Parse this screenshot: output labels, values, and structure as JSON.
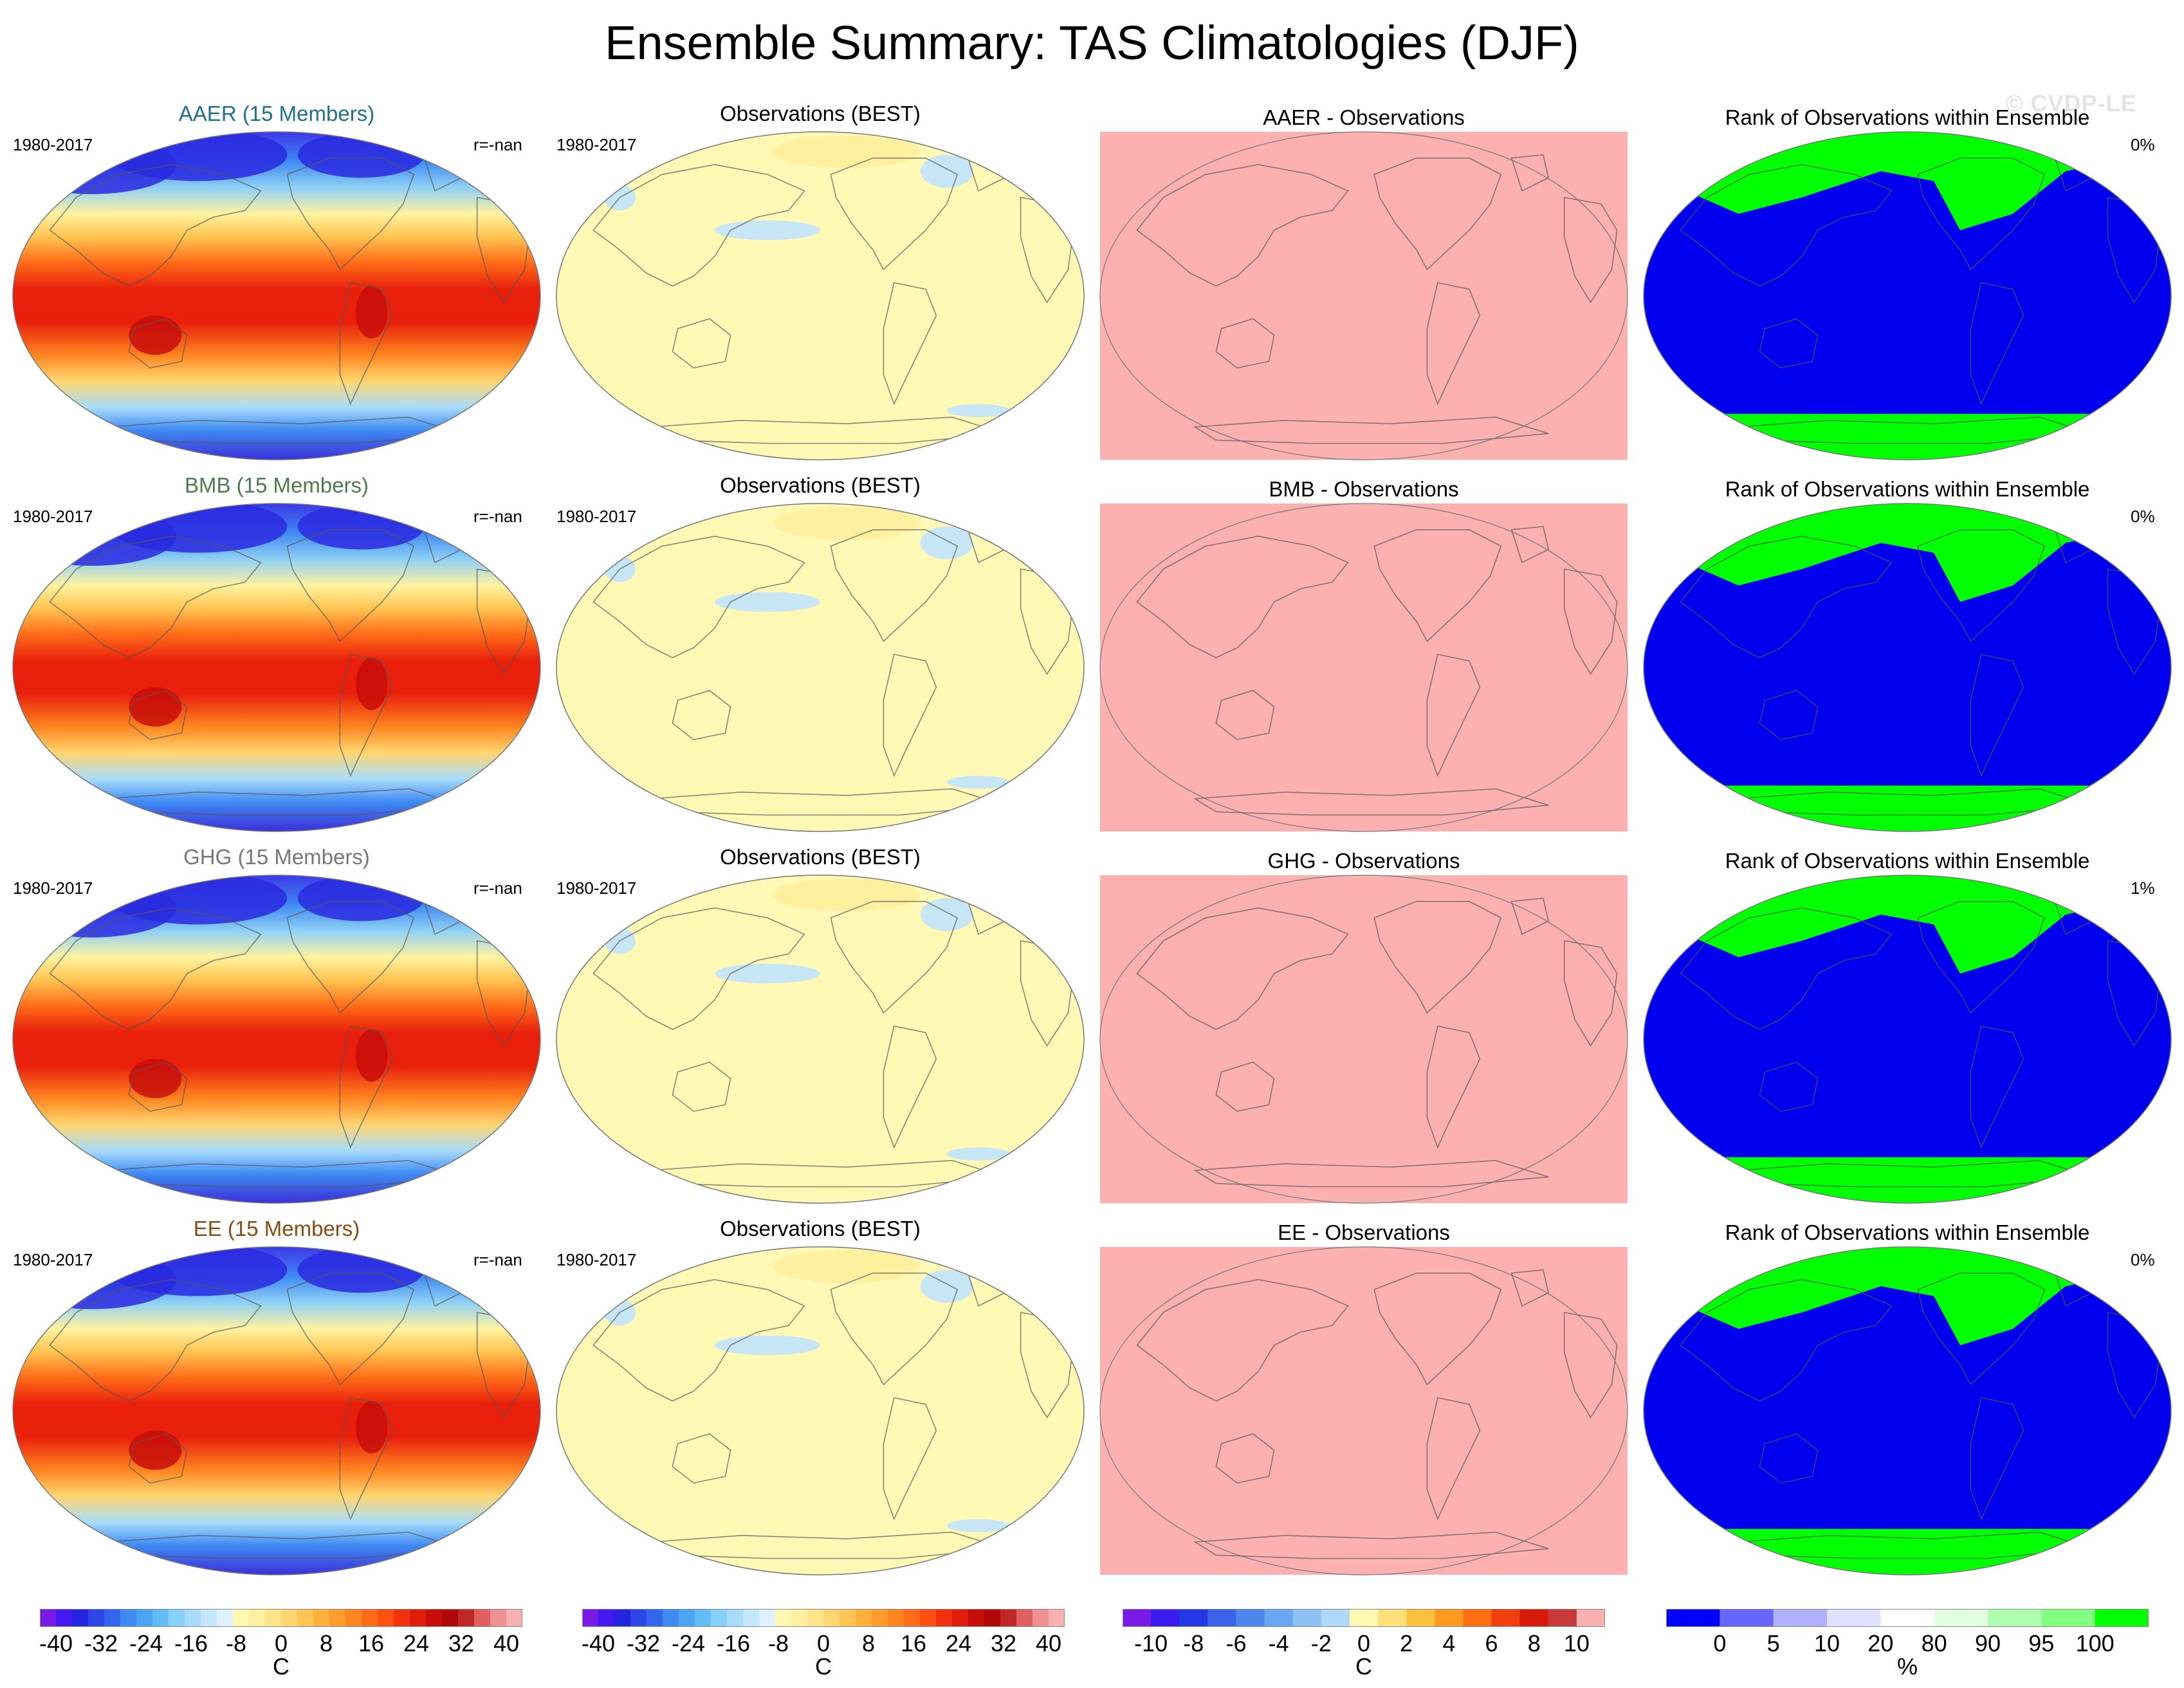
{
  "title": "Ensemble Summary: TAS Climatologies (DJF)",
  "watermark": "© CVDP-LE",
  "rows": [
    {
      "ensemble": "AAER (15 Members)",
      "ensemble_color": "#1f6f8f",
      "period": "1980-2017",
      "corr": "r=-nan",
      "obs_title": "Observations (BEST)",
      "obs_period": "1980-2017",
      "diff_title": "AAER - Observations",
      "rank_title": "Rank of Observations within Ensemble",
      "rank_pct": "0%"
    },
    {
      "ensemble": "BMB (15 Members)",
      "ensemble_color": "#4f7a4f",
      "period": "1980-2017",
      "corr": "r=-nan",
      "obs_title": "Observations (BEST)",
      "obs_period": "1980-2017",
      "diff_title": "BMB - Observations",
      "rank_title": "Rank of Observations within Ensemble",
      "rank_pct": "0%"
    },
    {
      "ensemble": "GHG (15 Members)",
      "ensemble_color": "#777777",
      "period": "1980-2017",
      "corr": "r=-nan",
      "obs_title": "Observations (BEST)",
      "obs_period": "1980-2017",
      "diff_title": "GHG - Observations",
      "rank_title": "Rank of Observations within Ensemble",
      "rank_pct": "1%"
    },
    {
      "ensemble": "EE (15 Members)",
      "ensemble_color": "#8a4a12",
      "period": "1980-2017",
      "corr": "r=-nan",
      "obs_title": "Observations (BEST)",
      "obs_period": "1980-2017",
      "diff_title": "EE - Observations",
      "rank_title": "Rank of Observations within Ensemble",
      "rank_pct": "0%"
    }
  ],
  "colorbars": [
    {
      "name": "climatology",
      "units": "C",
      "labels": [
        "-40",
        "-32",
        "-24",
        "-16",
        "-8",
        "0",
        "8",
        "16",
        "24",
        "32",
        "40"
      ],
      "colors": [
        "#7a1ae6",
        "#4418f0",
        "#2323e0",
        "#2d46e8",
        "#3366ee",
        "#3f8af2",
        "#4aa6f5",
        "#62bdf7",
        "#86cff9",
        "#a8dcfa",
        "#c4e8fb",
        "#ddf2fc",
        "#fff8b0",
        "#fff0a0",
        "#ffe58a",
        "#ffd670",
        "#ffc451",
        "#ffb13b",
        "#ff9c2a",
        "#ff8520",
        "#ff6b18",
        "#ff5010",
        "#f0330c",
        "#e01c0a",
        "#c80e0a",
        "#b00808",
        "#c02828",
        "#e06060",
        "#f09090",
        "#f8b0b0"
      ]
    },
    {
      "name": "climatology-obs",
      "units": "C",
      "labels": [
        "-40",
        "-32",
        "-24",
        "-16",
        "-8",
        "0",
        "8",
        "16",
        "24",
        "32",
        "40"
      ],
      "colors": [
        "#7a1ae6",
        "#4418f0",
        "#2323e0",
        "#2d46e8",
        "#3366ee",
        "#3f8af2",
        "#4aa6f5",
        "#62bdf7",
        "#86cff9",
        "#a8dcfa",
        "#c4e8fb",
        "#ddf2fc",
        "#fff8b0",
        "#fff0a0",
        "#ffe58a",
        "#ffd670",
        "#ffc451",
        "#ffb13b",
        "#ff9c2a",
        "#ff8520",
        "#ff6b18",
        "#ff5010",
        "#f0330c",
        "#e01c0a",
        "#c80e0a",
        "#b00808",
        "#c02828",
        "#e06060",
        "#f09090",
        "#f8b0b0"
      ]
    },
    {
      "name": "difference",
      "units": "C",
      "labels": [
        "-10",
        "-8",
        "-6",
        "-4",
        "-2",
        "0",
        "2",
        "4",
        "6",
        "8",
        "10"
      ],
      "colors": [
        "#7a1ae6",
        "#3a1cf0",
        "#2438e6",
        "#3c64ea",
        "#4f86ee",
        "#6aa6f2",
        "#8cc2f6",
        "#b0d8f8",
        "#fff8b0",
        "#ffe07a",
        "#ffc040",
        "#ff9a20",
        "#ff6e10",
        "#f03e0c",
        "#d81a0a",
        "#c83a3a",
        "#f8b0b0"
      ]
    },
    {
      "name": "rank",
      "units": "%",
      "labels": [
        "0",
        "5",
        "10",
        "20",
        "80",
        "90",
        "95",
        "100"
      ],
      "colors": [
        "#0000ff",
        "#6666ff",
        "#b0b0ff",
        "#e0e0ff",
        "#ffffff",
        "#e0ffe0",
        "#b0ffb0",
        "#80ff80",
        "#00ff00"
      ]
    }
  ]
}
